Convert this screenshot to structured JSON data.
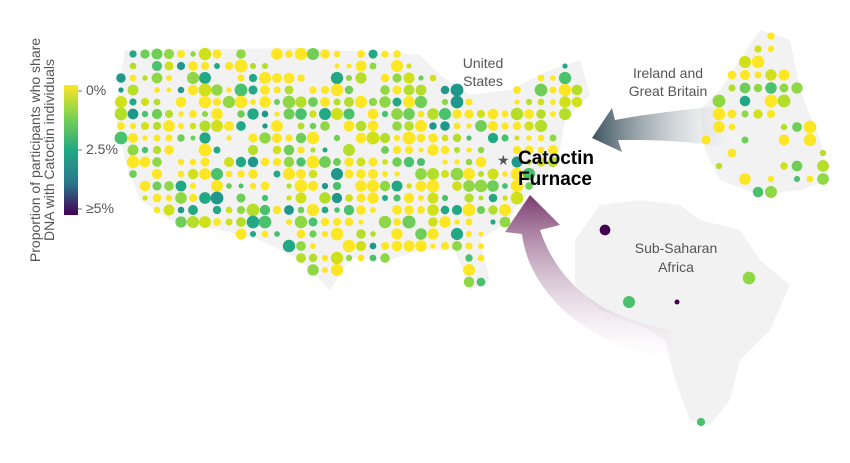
{
  "legend": {
    "title": [
      "Proportion of participants who share",
      "DNA with Catoctin individuals"
    ],
    "ticks": [
      {
        "value": 0,
        "label": "0%"
      },
      {
        "value": 2.5,
        "label": "2.5%"
      },
      {
        "value": 5,
        "label": "≥5%"
      }
    ],
    "range": [
      0,
      5
    ]
  },
  "regions": [
    {
      "label": [
        "United",
        "States"
      ]
    },
    {
      "label": [
        "Ireland and",
        "Great Britain"
      ]
    },
    {
      "label": [
        "Sub-Saharan",
        "Africa"
      ]
    }
  ],
  "site": {
    "label": [
      "Catoctin",
      "Furnace"
    ]
  }
}
